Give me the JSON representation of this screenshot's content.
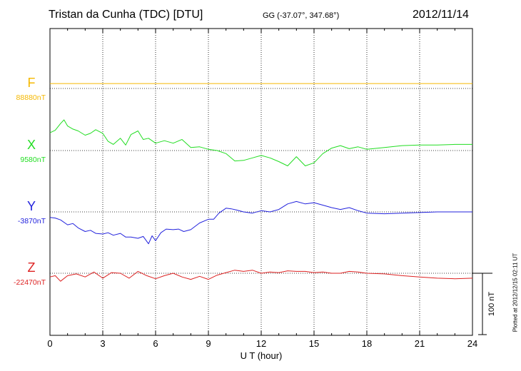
{
  "header": {
    "station": "Tristan da Cunha (TDC)  [DTU]",
    "coords": "GG (-37.07°, 347.68°)",
    "date": "2012/11/14"
  },
  "footer": {
    "plotted": "Plotted at 2012/12/15 02:11  UT"
  },
  "scale_bar": "100 nT",
  "chart_data": {
    "type": "line",
    "xlabel": "U T (hour)",
    "xlim": [
      0,
      24
    ],
    "xticks": [
      "0",
      "3",
      "6",
      "9",
      "12",
      "15",
      "18",
      "21",
      "24"
    ],
    "scale_nT_per_bar": 100,
    "grid": true,
    "series": [
      {
        "name": "F",
        "baseline_label": "88880nT",
        "color": "#f5b800",
        "baseline": 88880,
        "x": [
          0,
          24
        ],
        "y": [
          88888,
          88888
        ]
      },
      {
        "name": "X",
        "baseline_label": "9580nT",
        "color": "#22dd22",
        "baseline": 9580,
        "x": [
          0,
          0.3,
          0.6,
          0.8,
          1.0,
          1.3,
          1.6,
          2.0,
          2.3,
          2.6,
          3.0,
          3.3,
          3.6,
          4.0,
          4.3,
          4.6,
          5.0,
          5.3,
          5.6,
          6.0,
          6.5,
          7.0,
          7.5,
          8.0,
          8.5,
          9.0,
          9.5,
          10.0,
          10.5,
          11.0,
          11.5,
          12.0,
          12.5,
          13.0,
          13.5,
          14.0,
          14.5,
          15.0,
          15.5,
          16.0,
          16.5,
          17.0,
          17.5,
          18.0,
          19.0,
          20.0,
          21.0,
          22.0,
          23.0,
          24.0
        ],
        "y": [
          9609,
          9613,
          9624,
          9630,
          9620,
          9615,
          9612,
          9605,
          9608,
          9614,
          9608,
          9595,
          9590,
          9600,
          9589,
          9606,
          9612,
          9598,
          9600,
          9592,
          9596,
          9592,
          9598,
          9585,
          9586,
          9582,
          9580,
          9575,
          9563,
          9564,
          9568,
          9572,
          9568,
          9562,
          9555,
          9570,
          9555,
          9560,
          9575,
          9584,
          9588,
          9583,
          9586,
          9582,
          9585,
          9588,
          9589,
          9589,
          9590,
          9590
        ]
      },
      {
        "name": "Y",
        "baseline_label": "-3870nT",
        "color": "#2222dd",
        "baseline": -3870,
        "x": [
          0,
          0.3,
          0.6,
          1.0,
          1.3,
          1.6,
          2.0,
          2.3,
          2.6,
          3.0,
          3.3,
          3.6,
          4.0,
          4.3,
          4.6,
          5.0,
          5.3,
          5.6,
          5.8,
          6.0,
          6.3,
          6.6,
          7.0,
          7.3,
          7.6,
          8.0,
          8.5,
          9.0,
          9.3,
          9.6,
          10.0,
          10.3,
          10.6,
          11.0,
          11.5,
          12.0,
          12.5,
          13.0,
          13.5,
          14.0,
          14.5,
          15.0,
          15.5,
          16.0,
          16.5,
          17.0,
          17.5,
          18.0,
          19.0,
          20.0,
          21.0,
          22.0,
          23.0,
          24.0
        ],
        "y": [
          -3879,
          -3880,
          -3883,
          -3891,
          -3889,
          -3896,
          -3902,
          -3900,
          -3905,
          -3906,
          -3904,
          -3908,
          -3905,
          -3911,
          -3911,
          -3913,
          -3910,
          -3922,
          -3909,
          -3917,
          -3904,
          -3898,
          -3899,
          -3898,
          -3902,
          -3899,
          -3888,
          -3882,
          -3882,
          -3872,
          -3864,
          -3865,
          -3867,
          -3870,
          -3872,
          -3868,
          -3870,
          -3866,
          -3857,
          -3853,
          -3857,
          -3855,
          -3859,
          -3863,
          -3866,
          -3863,
          -3868,
          -3872,
          -3873,
          -3872,
          -3871,
          -3870,
          -3870,
          -3870
        ]
      },
      {
        "name": "Z",
        "baseline_label": "-22470nT",
        "color": "#dd2222",
        "baseline": -22470,
        "x": [
          0,
          0.3,
          0.6,
          1.0,
          1.5,
          2.0,
          2.5,
          3.0,
          3.5,
          4.0,
          4.5,
          5.0,
          5.5,
          6.0,
          6.5,
          7.0,
          7.5,
          8.0,
          8.5,
          9.0,
          9.5,
          10.0,
          10.5,
          11.0,
          11.5,
          12.0,
          12.5,
          13.0,
          13.5,
          14.0,
          14.5,
          15.0,
          15.5,
          16.0,
          16.5,
          17.0,
          17.5,
          18.0,
          19.0,
          20.0,
          21.0,
          22.0,
          23.0,
          24.0
        ],
        "y": [
          -22476,
          -22474,
          -22483,
          -22474,
          -22471,
          -22476,
          -22468,
          -22478,
          -22469,
          -22470,
          -22478,
          -22467,
          -22474,
          -22479,
          -22474,
          -22470,
          -22476,
          -22480,
          -22475,
          -22480,
          -22473,
          -22469,
          -22465,
          -22467,
          -22465,
          -22470,
          -22468,
          -22469,
          -22466,
          -22467,
          -22467,
          -22469,
          -22468,
          -22470,
          -22470,
          -22467,
          -22468,
          -22470,
          -22471,
          -22474,
          -22476,
          -22478,
          -22479,
          -22478
        ]
      }
    ]
  }
}
